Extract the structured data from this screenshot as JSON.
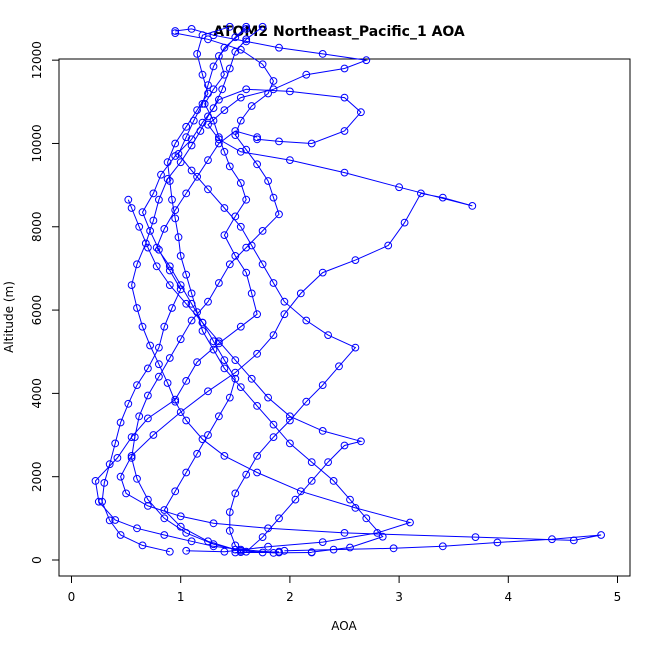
{
  "chart_data": {
    "type": "scatter",
    "title": "ATOM2 Northeast_Pacific_1 AOA",
    "xlabel": "AOA",
    "ylabel": "Altitude (m)",
    "xlim": [
      0,
      5
    ],
    "ylim": [
      0,
      13000
    ],
    "x_ticks": [
      0,
      1,
      2,
      3,
      4,
      5
    ],
    "x_tick_labels": [
      "0",
      "1",
      "2",
      "3",
      "4",
      "5"
    ],
    "y_ticks": [
      0,
      2000,
      4000,
      6000,
      8000,
      10000,
      12000
    ],
    "y_tick_labels": [
      "0",
      "2000",
      "4000",
      "6000",
      "8000",
      "10000",
      "12000"
    ],
    "grid": false,
    "legend": "none",
    "marker": "open-circle",
    "connected": true,
    "color": "#0000ff",
    "series": [
      {
        "values": [
          [
            1.5,
            180
          ],
          [
            1.9,
            180
          ],
          [
            1.55,
            250
          ],
          [
            1.3,
            330
          ],
          [
            1.1,
            450
          ],
          [
            0.85,
            600
          ],
          [
            0.6,
            760
          ],
          [
            0.4,
            960
          ],
          [
            0.25,
            1400
          ],
          [
            0.22,
            1900
          ],
          [
            0.42,
            2450
          ],
          [
            0.55,
            2950
          ],
          [
            0.7,
            3400
          ],
          [
            0.95,
            3850
          ],
          [
            1.05,
            4300
          ],
          [
            1.15,
            4750
          ],
          [
            1.35,
            5200
          ],
          [
            1.55,
            5600
          ],
          [
            1.7,
            5900
          ],
          [
            1.65,
            6400
          ],
          [
            1.6,
            6900
          ],
          [
            1.5,
            7300
          ],
          [
            1.4,
            7800
          ],
          [
            1.5,
            8250
          ],
          [
            1.6,
            8650
          ],
          [
            1.55,
            9050
          ],
          [
            1.45,
            9450
          ],
          [
            1.4,
            9800
          ],
          [
            1.35,
            10150
          ],
          [
            1.3,
            10550
          ],
          [
            1.22,
            10950
          ],
          [
            1.3,
            11300
          ],
          [
            1.4,
            11650
          ],
          [
            1.35,
            12100
          ],
          [
            1.5,
            12550
          ],
          [
            1.6,
            12800
          ]
        ]
      },
      {
        "values": [
          [
            1.75,
            12800
          ],
          [
            1.6,
            12500
          ],
          [
            1.5,
            12200
          ],
          [
            1.45,
            11800
          ],
          [
            1.38,
            11300
          ],
          [
            1.3,
            10850
          ],
          [
            1.2,
            10500
          ],
          [
            1.1,
            10100
          ],
          [
            0.95,
            9700
          ],
          [
            0.82,
            9250
          ],
          [
            0.75,
            8800
          ],
          [
            0.65,
            8350
          ],
          [
            0.72,
            7900
          ],
          [
            0.8,
            7450
          ],
          [
            0.9,
            6950
          ],
          [
            1.0,
            6500
          ],
          [
            0.92,
            6050
          ],
          [
            0.85,
            5600
          ],
          [
            0.8,
            5100
          ],
          [
            0.7,
            4600
          ],
          [
            0.6,
            4200
          ],
          [
            0.52,
            3750
          ],
          [
            0.45,
            3300
          ],
          [
            0.4,
            2800
          ],
          [
            0.35,
            2300
          ],
          [
            0.3,
            1850
          ],
          [
            0.28,
            1400
          ],
          [
            0.35,
            950
          ],
          [
            0.45,
            600
          ],
          [
            0.65,
            350
          ],
          [
            0.9,
            200
          ]
        ]
      },
      {
        "values": [
          [
            1.05,
            220
          ],
          [
            1.4,
            200
          ],
          [
            1.8,
            320
          ],
          [
            2.3,
            430
          ],
          [
            2.8,
            650
          ],
          [
            3.1,
            900
          ],
          [
            2.6,
            1250
          ],
          [
            2.1,
            1650
          ],
          [
            1.7,
            2100
          ],
          [
            1.4,
            2500
          ],
          [
            1.2,
            2900
          ],
          [
            1.05,
            3350
          ],
          [
            0.95,
            3800
          ],
          [
            0.88,
            4250
          ],
          [
            0.8,
            4700
          ],
          [
            0.72,
            5150
          ],
          [
            0.65,
            5600
          ],
          [
            0.6,
            6050
          ],
          [
            0.55,
            6600
          ],
          [
            0.6,
            7100
          ],
          [
            0.68,
            7600
          ],
          [
            0.75,
            8150
          ],
          [
            0.8,
            8650
          ],
          [
            0.88,
            9150
          ],
          [
            1.0,
            9550
          ],
          [
            1.1,
            9950
          ],
          [
            1.18,
            10300
          ],
          [
            1.25,
            10650
          ],
          [
            1.35,
            11050
          ],
          [
            1.6,
            11300
          ],
          [
            2.0,
            11250
          ],
          [
            2.5,
            11100
          ],
          [
            2.65,
            10750
          ],
          [
            2.5,
            10300
          ],
          [
            2.2,
            10000
          ],
          [
            1.9,
            10050
          ],
          [
            1.7,
            10100
          ]
        ]
      },
      {
        "values": [
          [
            1.7,
            10150
          ],
          [
            1.5,
            10300
          ],
          [
            1.35,
            10000
          ],
          [
            1.25,
            9600
          ],
          [
            1.15,
            9200
          ],
          [
            1.05,
            8800
          ],
          [
            0.95,
            8400
          ],
          [
            0.85,
            7950
          ],
          [
            0.78,
            7500
          ],
          [
            0.9,
            7050
          ],
          [
            1.0,
            6600
          ],
          [
            1.1,
            6150
          ],
          [
            1.2,
            5700
          ],
          [
            1.3,
            5250
          ],
          [
            1.4,
            4800
          ],
          [
            1.5,
            4350
          ],
          [
            1.45,
            3900
          ],
          [
            1.35,
            3450
          ],
          [
            1.25,
            3000
          ],
          [
            1.15,
            2550
          ],
          [
            1.05,
            2100
          ],
          [
            0.95,
            1650
          ],
          [
            0.85,
            1200
          ],
          [
            1.0,
            800
          ],
          [
            1.25,
            450
          ],
          [
            1.5,
            250
          ],
          [
            1.75,
            180
          ],
          [
            1.9,
            200
          ]
        ]
      },
      {
        "values": [
          [
            1.95,
            220
          ],
          [
            2.4,
            250
          ],
          [
            2.95,
            280
          ],
          [
            3.4,
            330
          ],
          [
            3.9,
            420
          ],
          [
            4.4,
            500
          ],
          [
            4.85,
            600
          ],
          [
            4.6,
            470
          ],
          [
            3.7,
            550
          ],
          [
            2.5,
            650
          ],
          [
            1.8,
            760
          ],
          [
            1.3,
            880
          ],
          [
            1.0,
            1050
          ],
          [
            0.7,
            1300
          ],
          [
            0.5,
            1600
          ],
          [
            0.45,
            2000
          ],
          [
            0.55,
            2500
          ],
          [
            0.75,
            3000
          ],
          [
            1.0,
            3550
          ],
          [
            1.25,
            4050
          ],
          [
            1.5,
            4500
          ],
          [
            1.7,
            4950
          ],
          [
            1.85,
            5400
          ],
          [
            1.95,
            5900
          ],
          [
            2.1,
            6400
          ],
          [
            2.3,
            6900
          ],
          [
            2.6,
            7200
          ],
          [
            2.9,
            7550
          ],
          [
            3.05,
            8100
          ],
          [
            3.2,
            8800
          ],
          [
            3.4,
            8700
          ],
          [
            3.67,
            8500
          ],
          [
            3.0,
            8950
          ],
          [
            2.5,
            9300
          ],
          [
            2.0,
            9600
          ],
          [
            1.55,
            9800
          ],
          [
            1.35,
            10100
          ],
          [
            1.25,
            10450
          ],
          [
            1.4,
            10800
          ],
          [
            1.55,
            11100
          ],
          [
            1.85,
            11300
          ],
          [
            2.15,
            11650
          ],
          [
            2.5,
            11800
          ],
          [
            2.7,
            12000
          ],
          [
            2.3,
            12150
          ],
          [
            1.9,
            12300
          ],
          [
            1.6,
            12450
          ],
          [
            1.3,
            12600
          ],
          [
            1.1,
            12750
          ],
          [
            0.95,
            12700
          ]
        ]
      },
      {
        "values": [
          [
            0.95,
            12650
          ],
          [
            1.25,
            12500
          ],
          [
            1.55,
            12250
          ],
          [
            1.75,
            11900
          ],
          [
            1.85,
            11500
          ],
          [
            1.8,
            11200
          ],
          [
            1.65,
            10900
          ],
          [
            1.55,
            10550
          ],
          [
            1.5,
            10200
          ],
          [
            1.6,
            9850
          ],
          [
            1.7,
            9500
          ],
          [
            1.8,
            9100
          ],
          [
            1.85,
            8700
          ],
          [
            1.9,
            8300
          ],
          [
            1.75,
            7900
          ],
          [
            1.6,
            7500
          ],
          [
            1.45,
            7100
          ],
          [
            1.35,
            6650
          ],
          [
            1.25,
            6200
          ],
          [
            1.1,
            5750
          ],
          [
            1.0,
            5300
          ],
          [
            0.9,
            4850
          ],
          [
            0.8,
            4400
          ],
          [
            0.7,
            3950
          ],
          [
            0.62,
            3450
          ],
          [
            0.58,
            2950
          ],
          [
            0.55,
            2450
          ],
          [
            0.6,
            1950
          ],
          [
            0.7,
            1450
          ],
          [
            0.85,
            1000
          ],
          [
            1.05,
            650
          ],
          [
            1.3,
            380
          ],
          [
            1.55,
            220
          ],
          [
            1.85,
            170
          ],
          [
            2.2,
            180
          ]
        ]
      },
      {
        "values": [
          [
            2.2,
            190
          ],
          [
            2.55,
            300
          ],
          [
            2.85,
            560
          ],
          [
            2.7,
            1000
          ],
          [
            2.55,
            1450
          ],
          [
            2.4,
            1900
          ],
          [
            2.2,
            2350
          ],
          [
            2.0,
            2800
          ],
          [
            1.85,
            3250
          ],
          [
            1.7,
            3700
          ],
          [
            1.55,
            4150
          ],
          [
            1.4,
            4600
          ],
          [
            1.3,
            5050
          ],
          [
            1.2,
            5500
          ],
          [
            1.15,
            5950
          ],
          [
            1.1,
            6400
          ],
          [
            1.05,
            6850
          ],
          [
            1.0,
            7300
          ],
          [
            0.98,
            7750
          ],
          [
            0.95,
            8200
          ],
          [
            0.92,
            8650
          ],
          [
            0.9,
            9100
          ],
          [
            0.88,
            9550
          ],
          [
            0.95,
            10000
          ],
          [
            1.05,
            10400
          ],
          [
            1.15,
            10800
          ],
          [
            1.25,
            11200
          ],
          [
            1.2,
            11650
          ],
          [
            1.15,
            12150
          ],
          [
            1.2,
            12600
          ],
          [
            1.45,
            12800
          ]
        ]
      },
      {
        "values": [
          [
            1.6,
            12750
          ],
          [
            1.4,
            12300
          ],
          [
            1.3,
            11850
          ],
          [
            1.25,
            11400
          ],
          [
            1.2,
            10950
          ],
          [
            1.12,
            10550
          ],
          [
            1.05,
            10150
          ],
          [
            0.98,
            9750
          ],
          [
            1.1,
            9350
          ],
          [
            1.25,
            8900
          ],
          [
            1.4,
            8450
          ],
          [
            1.55,
            8000
          ],
          [
            1.65,
            7550
          ],
          [
            1.75,
            7100
          ],
          [
            1.85,
            6650
          ],
          [
            1.95,
            6200
          ],
          [
            2.15,
            5750
          ],
          [
            2.35,
            5400
          ],
          [
            2.6,
            5100
          ],
          [
            2.45,
            4650
          ],
          [
            2.3,
            4200
          ],
          [
            2.15,
            3800
          ],
          [
            2.0,
            3350
          ],
          [
            1.85,
            2950
          ],
          [
            1.7,
            2500
          ],
          [
            1.6,
            2050
          ],
          [
            1.5,
            1600
          ],
          [
            1.45,
            1150
          ],
          [
            1.45,
            700
          ],
          [
            1.5,
            350
          ],
          [
            1.55,
            190
          ]
        ]
      },
      {
        "values": [
          [
            1.6,
            200
          ],
          [
            1.75,
            550
          ],
          [
            1.9,
            1000
          ],
          [
            2.05,
            1450
          ],
          [
            2.2,
            1900
          ],
          [
            2.35,
            2350
          ],
          [
            2.5,
            2750
          ],
          [
            2.65,
            2850
          ],
          [
            2.3,
            3100
          ],
          [
            2.0,
            3450
          ],
          [
            1.8,
            3900
          ],
          [
            1.65,
            4350
          ],
          [
            1.5,
            4800
          ],
          [
            1.35,
            5250
          ],
          [
            1.2,
            5700
          ],
          [
            1.05,
            6150
          ],
          [
            0.9,
            6600
          ],
          [
            0.78,
            7050
          ],
          [
            0.7,
            7500
          ],
          [
            0.62,
            8000
          ],
          [
            0.55,
            8450
          ],
          [
            0.52,
            8650
          ]
        ]
      }
    ]
  }
}
